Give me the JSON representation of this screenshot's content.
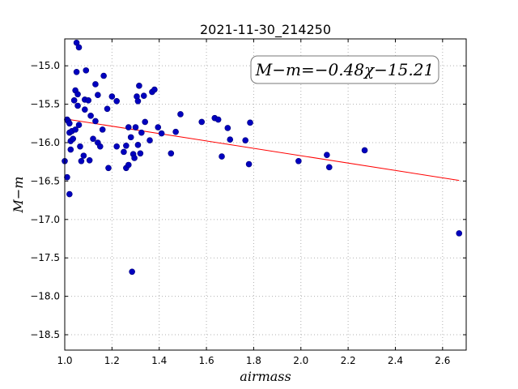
{
  "chart_data": {
    "type": "scatter",
    "title": "2021-11-30_214250",
    "xlabel": "airmass",
    "ylabel": "M−m",
    "xlim": [
      1.0,
      2.7
    ],
    "ylim": [
      -18.7,
      -14.65
    ],
    "y_inverted": true,
    "grid": true,
    "xticks": [
      1.0,
      1.2,
      1.4,
      1.6,
      1.8,
      2.0,
      2.2,
      2.4,
      2.6
    ],
    "xtick_labels": [
      "1.0",
      "1.2",
      "1.4",
      "1.6",
      "1.8",
      "2.0",
      "2.2",
      "2.4",
      "2.6"
    ],
    "yticks": [
      -15.0,
      -15.5,
      -16.0,
      -16.5,
      -17.0,
      -17.5,
      -18.0,
      -18.5
    ],
    "ytick_labels": [
      "−15.0",
      "−15.5",
      "−16.0",
      "−16.5",
      "−17.0",
      "−17.5",
      "−18.0",
      "−18.5"
    ],
    "annotation": "M−m=−0.48χ−15.21",
    "colors": {
      "points": "#0000bf",
      "fit": "#ff0000",
      "grid": "#b0b0b0"
    },
    "fit": {
      "slope": -0.48,
      "intercept": -15.21,
      "x_range": [
        1.0,
        2.67
      ]
    },
    "points": [
      [
        1.0,
        -16.24
      ],
      [
        1.01,
        -15.7
      ],
      [
        1.01,
        -16.45
      ],
      [
        1.015,
        -15.72
      ],
      [
        1.02,
        -15.87
      ],
      [
        1.02,
        -16.67
      ],
      [
        1.02,
        -15.75
      ],
      [
        1.025,
        -15.98
      ],
      [
        1.025,
        -16.09
      ],
      [
        1.03,
        -15.85
      ],
      [
        1.035,
        -15.95
      ],
      [
        1.04,
        -15.45
      ],
      [
        1.045,
        -15.83
      ],
      [
        1.045,
        -15.32
      ],
      [
        1.05,
        -14.7
      ],
      [
        1.05,
        -15.08
      ],
      [
        1.055,
        -15.37
      ],
      [
        1.055,
        -15.52
      ],
      [
        1.06,
        -14.76
      ],
      [
        1.06,
        -15.77
      ],
      [
        1.065,
        -16.05
      ],
      [
        1.07,
        -16.24
      ],
      [
        1.08,
        -16.17
      ],
      [
        1.085,
        -15.57
      ],
      [
        1.085,
        -15.44
      ],
      [
        1.09,
        -15.06
      ],
      [
        1.1,
        -15.45
      ],
      [
        1.105,
        -16.23
      ],
      [
        1.11,
        -15.65
      ],
      [
        1.12,
        -15.95
      ],
      [
        1.13,
        -15.24
      ],
      [
        1.13,
        -15.72
      ],
      [
        1.14,
        -16.0
      ],
      [
        1.14,
        -15.38
      ],
      [
        1.15,
        -16.05
      ],
      [
        1.16,
        -15.83
      ],
      [
        1.165,
        -15.13
      ],
      [
        1.18,
        -15.56
      ],
      [
        1.185,
        -16.33
      ],
      [
        1.2,
        -15.4
      ],
      [
        1.22,
        -15.46
      ],
      [
        1.22,
        -16.05
      ],
      [
        1.25,
        -16.12
      ],
      [
        1.26,
        -16.33
      ],
      [
        1.26,
        -16.04
      ],
      [
        1.27,
        -16.29
      ],
      [
        1.27,
        -15.8
      ],
      [
        1.28,
        -15.93
      ],
      [
        1.285,
        -17.68
      ],
      [
        1.29,
        -16.15
      ],
      [
        1.295,
        -16.2
      ],
      [
        1.3,
        -15.8
      ],
      [
        1.305,
        -15.4
      ],
      [
        1.31,
        -16.03
      ],
      [
        1.31,
        -15.46
      ],
      [
        1.315,
        -15.26
      ],
      [
        1.32,
        -16.14
      ],
      [
        1.325,
        -15.87
      ],
      [
        1.335,
        -15.39
      ],
      [
        1.34,
        -15.73
      ],
      [
        1.36,
        -15.97
      ],
      [
        1.37,
        -15.34
      ],
      [
        1.38,
        -15.31
      ],
      [
        1.395,
        -15.8
      ],
      [
        1.41,
        -15.88
      ],
      [
        1.45,
        -16.14
      ],
      [
        1.47,
        -15.86
      ],
      [
        1.49,
        -15.63
      ],
      [
        1.58,
        -15.73
      ],
      [
        1.635,
        -15.68
      ],
      [
        1.65,
        -15.7
      ],
      [
        1.665,
        -16.18
      ],
      [
        1.69,
        -15.81
      ],
      [
        1.7,
        -15.96
      ],
      [
        1.765,
        -15.97
      ],
      [
        1.78,
        -16.28
      ],
      [
        1.785,
        -15.74
      ],
      [
        1.99,
        -16.24
      ],
      [
        2.11,
        -16.16
      ],
      [
        2.12,
        -16.32
      ],
      [
        2.27,
        -16.1
      ],
      [
        2.67,
        -17.18
      ]
    ]
  }
}
